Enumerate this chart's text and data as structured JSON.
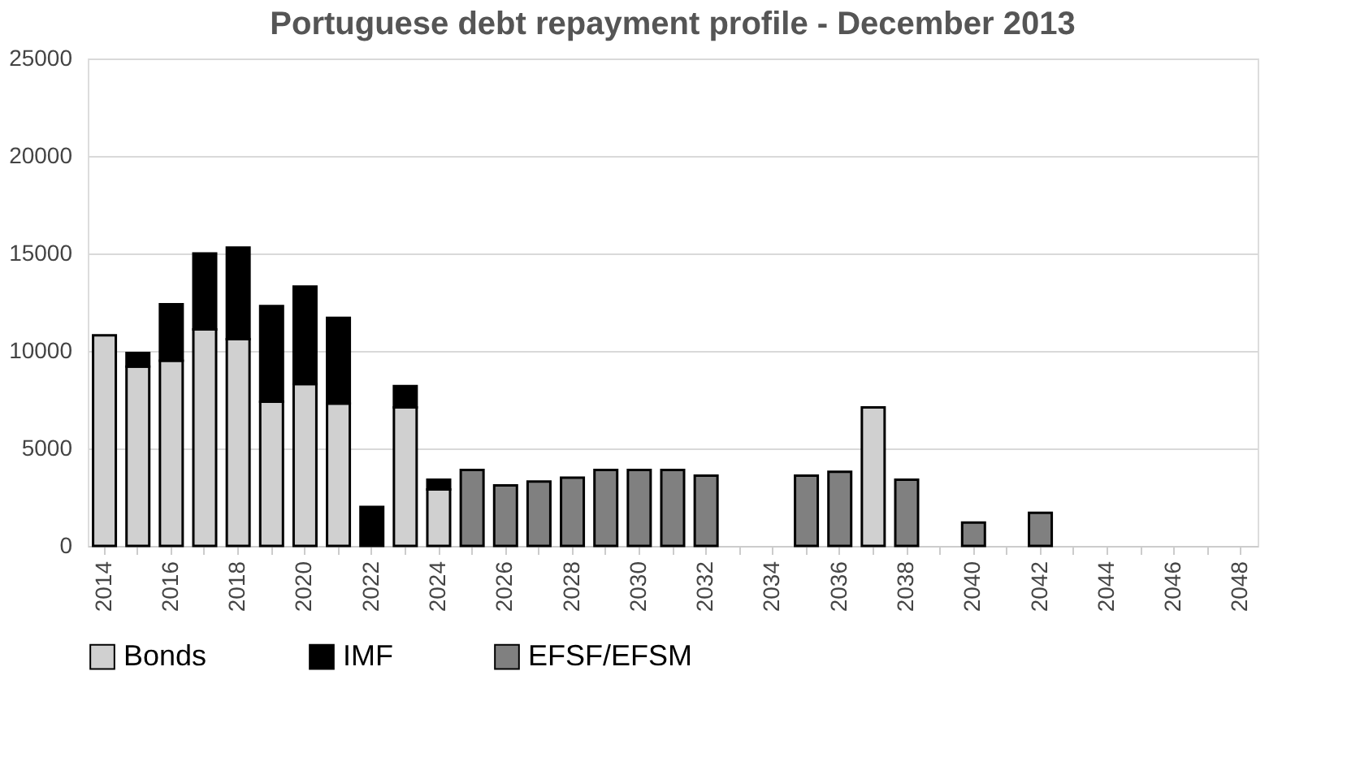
{
  "chart_data": {
    "type": "bar",
    "title": "Portuguese debt repayment profile - December 2013",
    "stacked": true,
    "categories": [
      "2014",
      null,
      "2016",
      null,
      "2018",
      null,
      "2020",
      null,
      "2022",
      null,
      "2024",
      null,
      "2026",
      null,
      "2028",
      null,
      "2030",
      null,
      "2032",
      null,
      "2034",
      null,
      "2036",
      null,
      "2038",
      null,
      "2040",
      null,
      "2042",
      null,
      "2044",
      null,
      "2046",
      null,
      "2048"
    ],
    "series": [
      {
        "name": "Bonds",
        "color": "#d0d0d0",
        "values": [
          10800,
          9200,
          9500,
          11100,
          10600,
          7400,
          8300,
          7300,
          null,
          7100,
          2900,
          null,
          null,
          null,
          null,
          null,
          null,
          null,
          null,
          null,
          null,
          null,
          null,
          7100,
          null,
          null,
          null,
          null,
          null,
          null,
          null,
          null,
          null,
          null,
          null
        ]
      },
      {
        "name": "IMF",
        "color": "#000000",
        "values": [
          null,
          700,
          2900,
          3900,
          4700,
          4900,
          5000,
          4400,
          2000,
          1100,
          500,
          null,
          null,
          null,
          null,
          null,
          null,
          null,
          null,
          null,
          null,
          null,
          null,
          null,
          null,
          null,
          null,
          null,
          null,
          null,
          null,
          null,
          null,
          null,
          null
        ]
      },
      {
        "name": "EFSF/EFSM",
        "color": "#808080",
        "values": [
          null,
          null,
          null,
          null,
          null,
          null,
          null,
          null,
          null,
          null,
          null,
          3900,
          3100,
          3300,
          3500,
          3900,
          3900,
          3900,
          3600,
          null,
          null,
          3600,
          3800,
          null,
          3400,
          null,
          1200,
          null,
          1700,
          null,
          null,
          null,
          null,
          null,
          null
        ]
      }
    ],
    "ylim": [
      0,
      25000
    ],
    "yticks": [
      0,
      5000,
      10000,
      15000,
      20000,
      25000
    ],
    "grid": "y",
    "legend": "bottom"
  }
}
